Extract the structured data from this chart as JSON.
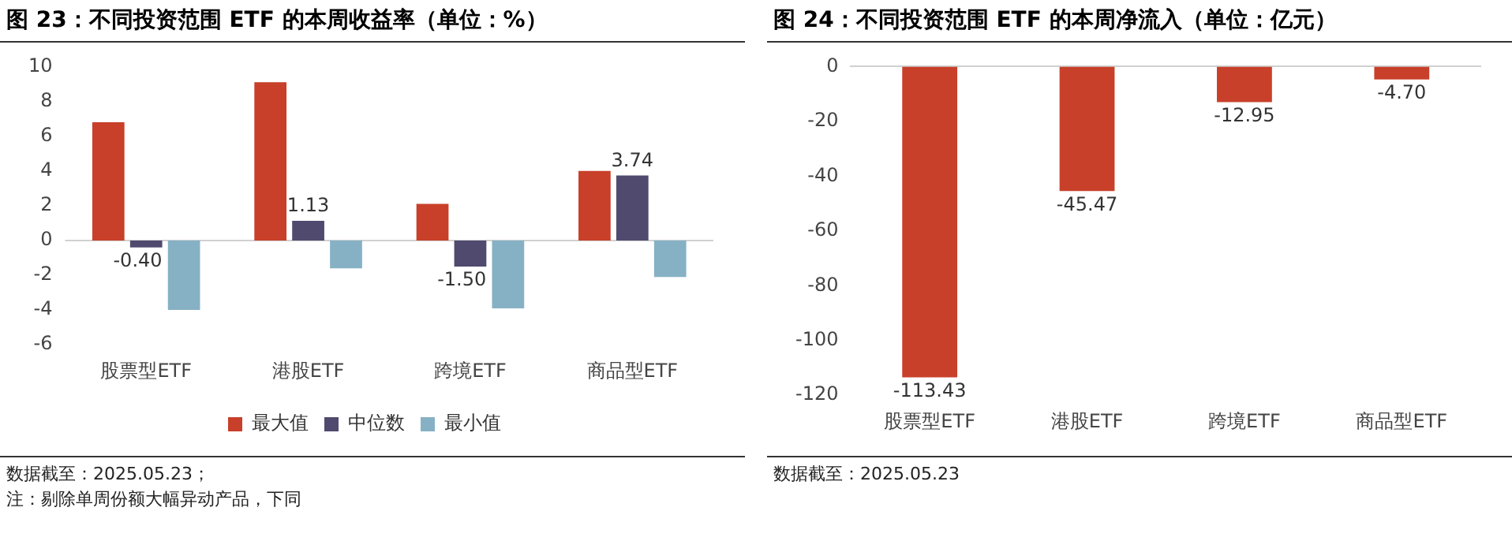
{
  "chart_data": [
    {
      "type": "bar",
      "title": "图 23：不同投资范围 ETF 的本周收益率（单位：%）",
      "categories": [
        "股票型ETF",
        "港股ETF",
        "跨境ETF",
        "商品型ETF"
      ],
      "series": [
        {
          "name": "最大值",
          "color": "#c8402a",
          "values": [
            6.8,
            9.1,
            2.1,
            4.0
          ]
        },
        {
          "name": "中位数",
          "color": "#4f4a6e",
          "values": [
            -0.4,
            1.13,
            -1.5,
            3.74
          ],
          "value_labels": [
            "-0.40",
            "1.13",
            "-1.50",
            "3.74"
          ]
        },
        {
          "name": "最小值",
          "color": "#86b1c5",
          "values": [
            -4.0,
            -1.6,
            -3.9,
            -2.1
          ]
        }
      ],
      "ylim": [
        -6,
        10
      ],
      "yticks": [
        -6,
        -4,
        -2,
        0,
        2,
        4,
        6,
        8,
        10
      ],
      "grid": false,
      "legend": "bottom",
      "ref_lines": [
        {
          "axis": "y",
          "value": 0,
          "color": "#d0d0d0"
        }
      ],
      "annotations": [
        "数据截至：2025.05.23；",
        "注：剔除单周份额大幅异动产品，下同"
      ]
    },
    {
      "type": "bar",
      "title": "图 24：不同投资范围 ETF 的本周净流入（单位：亿元）",
      "categories": [
        "股票型ETF",
        "港股ETF",
        "跨境ETF",
        "商品型ETF"
      ],
      "values": [
        -113.43,
        -45.47,
        -12.95,
        -4.7
      ],
      "value_labels": [
        "-113.43",
        "-45.47",
        "-12.95",
        "-4.70"
      ],
      "color": "#c8402a",
      "ylim": [
        -120,
        0
      ],
      "yticks": [
        -120,
        -100,
        -80,
        -60,
        -40,
        -20,
        0
      ],
      "grid": false,
      "annotations": [
        "数据截至：2025.05.23"
      ]
    }
  ]
}
